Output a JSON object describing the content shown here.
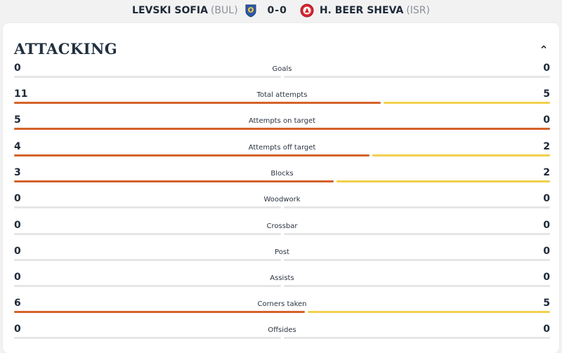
{
  "match": {
    "home_team": "LEVSKI SOFIA",
    "home_country": "(BUL)",
    "score": "0-0",
    "away_team": "H. BEER SHEVA",
    "away_country": "(ISR)"
  },
  "colors": {
    "home": "#d4622a",
    "away": "#f1d04c",
    "track": "#e6e6e6"
  },
  "section": {
    "title": "ATTACKING",
    "toggle_icon": "chevron-up-icon"
  },
  "stats": [
    {
      "label": "Goals",
      "home": "0",
      "away": "0"
    },
    {
      "label": "Total attempts",
      "home": "11",
      "away": "5"
    },
    {
      "label": "Attempts on target",
      "home": "5",
      "away": "0"
    },
    {
      "label": "Attempts off target",
      "home": "4",
      "away": "2"
    },
    {
      "label": "Blocks",
      "home": "3",
      "away": "2"
    },
    {
      "label": "Woodwork",
      "home": "0",
      "away": "0"
    },
    {
      "label": "Crossbar",
      "home": "0",
      "away": "0"
    },
    {
      "label": "Post",
      "home": "0",
      "away": "0"
    },
    {
      "label": "Assists",
      "home": "0",
      "away": "0"
    },
    {
      "label": "Corners taken",
      "home": "6",
      "away": "5"
    },
    {
      "label": "Offsides",
      "home": "0",
      "away": "0"
    }
  ]
}
